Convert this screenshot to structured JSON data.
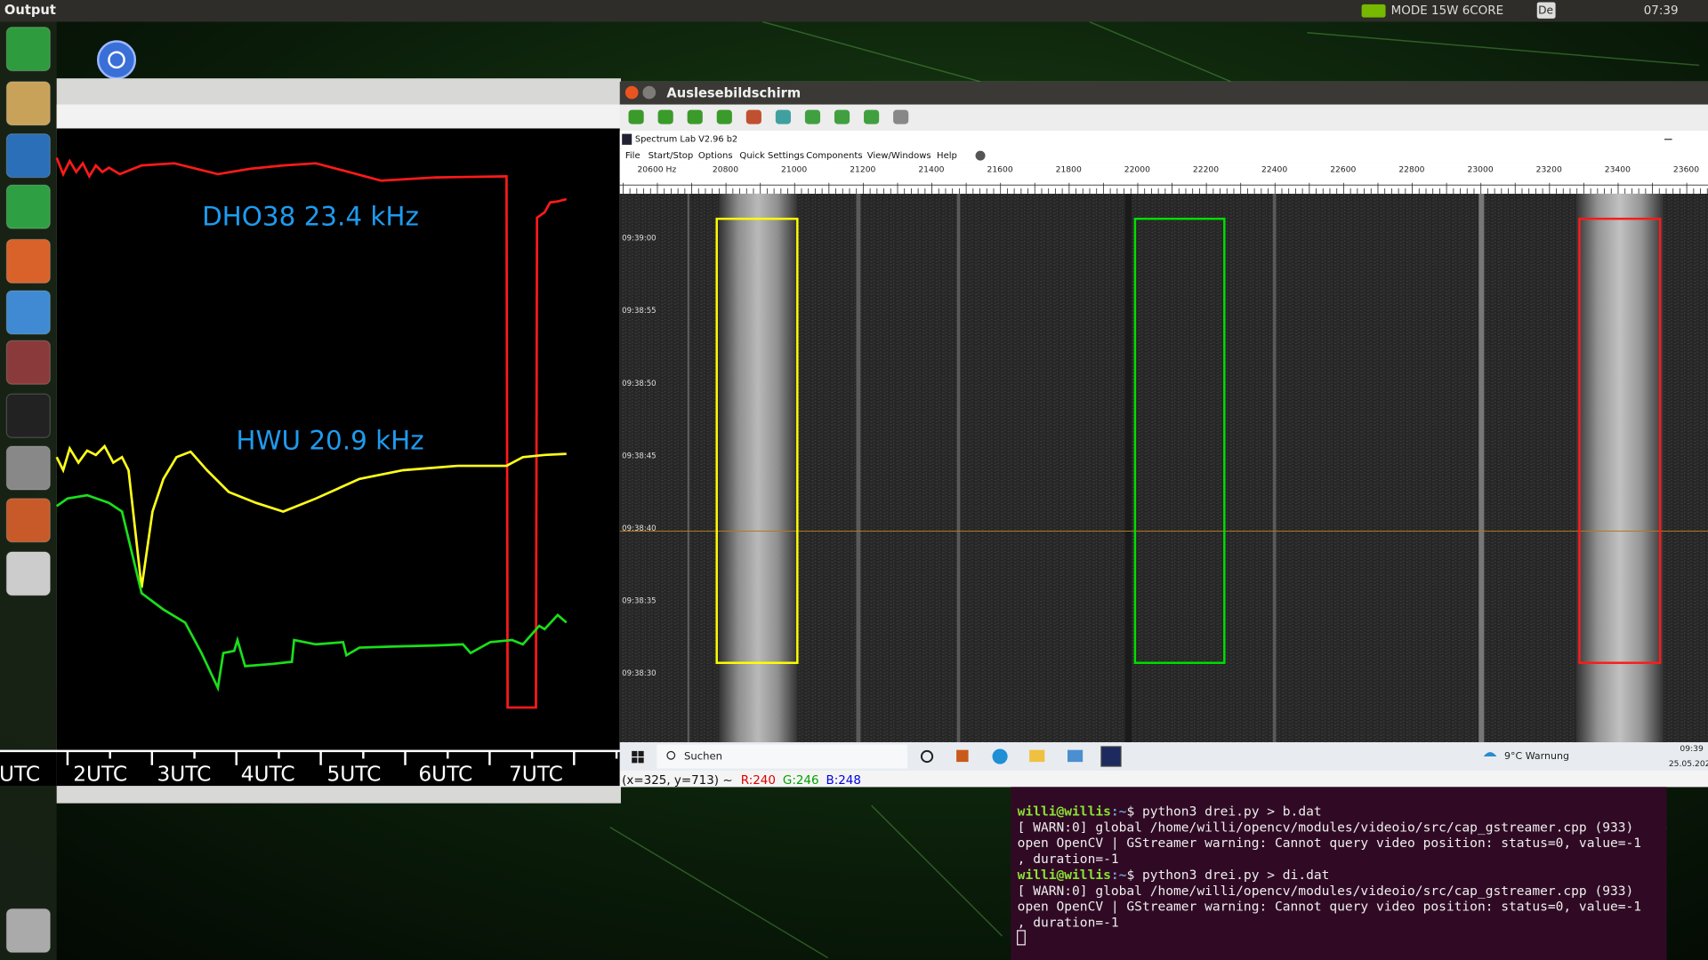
{
  "top_bar": {
    "title": "Output",
    "mode": "MODE 15W 6CORE",
    "keyboard": "De",
    "clock": "07:39"
  },
  "left_window": {
    "labels": [
      "DHO38 23.4 kHz",
      "HWU 20.9 kHz"
    ],
    "time_axis": [
      "UTC",
      "2UTC",
      "3UTC",
      "4UTC",
      "5UTC",
      "6UTC",
      "7UTC"
    ]
  },
  "right_window": {
    "title": "Auslesebildschirm",
    "app_title": "Spectrum Lab V2.96 b2",
    "menu": [
      "File",
      "Start/Stop",
      "Options",
      "Quick Settings",
      "Components",
      "View/Windows",
      "Help"
    ],
    "frequency_ruler": [
      "20600 Hz",
      "20800",
      "21000",
      "21200",
      "21400",
      "21600",
      "21800",
      "22000",
      "22200",
      "22400",
      "22600",
      "22800",
      "23000",
      "23200",
      "23400",
      "23600"
    ],
    "time_labels": [
      "09:39:00",
      "09:38:55",
      "09:38:50",
      "09:38:45",
      "09:38:40",
      "09:38:35",
      "09:38:30"
    ],
    "taskbar": {
      "search": "Suchen",
      "weather": "9°C Warnung",
      "time": "09:39",
      "date": "25.05.202"
    },
    "status": {
      "position": "(x=325, y=713) ~",
      "r": "R:240",
      "g": "G:246",
      "b": "B:248"
    }
  },
  "terminal": {
    "lines": [
      {
        "user": "willi@willis",
        "path": ":~",
        "command": "$ python3 drei.py > b.dat"
      },
      {
        "text": "[ WARN:0] global /home/willi/opencv/modules/videoio/src/cap_gstreamer.cpp (933)"
      },
      {
        "text": "open OpenCV | GStreamer warning: Cannot query video position: status=0, value=-1"
      },
      {
        "text": ", duration=-1"
      },
      {
        "user": "willi@willis",
        "path": ":~",
        "command": "$ python3 drei.py > di.dat"
      },
      {
        "text": "[ WARN:0] global /home/willi/opencv/modules/videoio/src/cap_gstreamer.cpp (933)"
      },
      {
        "text": "open OpenCV | GStreamer warning: Cannot query video position: status=0, value=-1"
      },
      {
        "text": ", duration=-1"
      }
    ]
  }
}
